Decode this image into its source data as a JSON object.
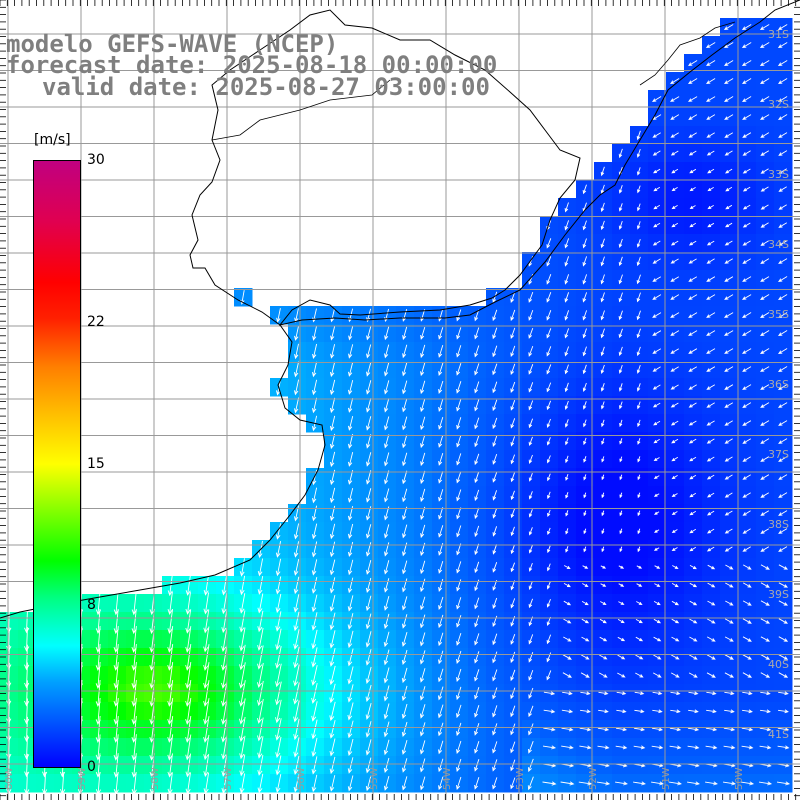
{
  "title": {
    "line1": "modelo GEFS-WAVE (NCEP)",
    "line2": "forecast date: 2025-08-18 00:00:00",
    "line3": "valid date: 2025-08-27 03:00:00"
  },
  "colorbar": {
    "unit": "[m/s]",
    "ticks": [
      {
        "value": 30,
        "label": "30"
      },
      {
        "value": 22,
        "label": "22"
      },
      {
        "value": 15,
        "label": "15"
      },
      {
        "value": 8,
        "label": "8"
      },
      {
        "value": 0,
        "label": "0"
      }
    ],
    "colors": [
      "#0000ff",
      "#00a0ff",
      "#00ffff",
      "#00ff80",
      "#00ff00",
      "#ffff00",
      "#ff7f00",
      "#ff0000",
      "#c00080"
    ]
  },
  "map": {
    "lat_labels": [
      "31S",
      "32S",
      "33S",
      "34S",
      "35S",
      "36S",
      "37S",
      "38S",
      "39S",
      "40S",
      "41S"
    ],
    "lon_labels": [
      "60W",
      "59W",
      "58W",
      "57W",
      "56W",
      "55W",
      "54W",
      "53W",
      "52W",
      "51W",
      "50W"
    ],
    "land_color": "#ffffff",
    "grid_color": "#999999",
    "coast_color": "#000000",
    "arrow_color": "#ffffff"
  }
}
